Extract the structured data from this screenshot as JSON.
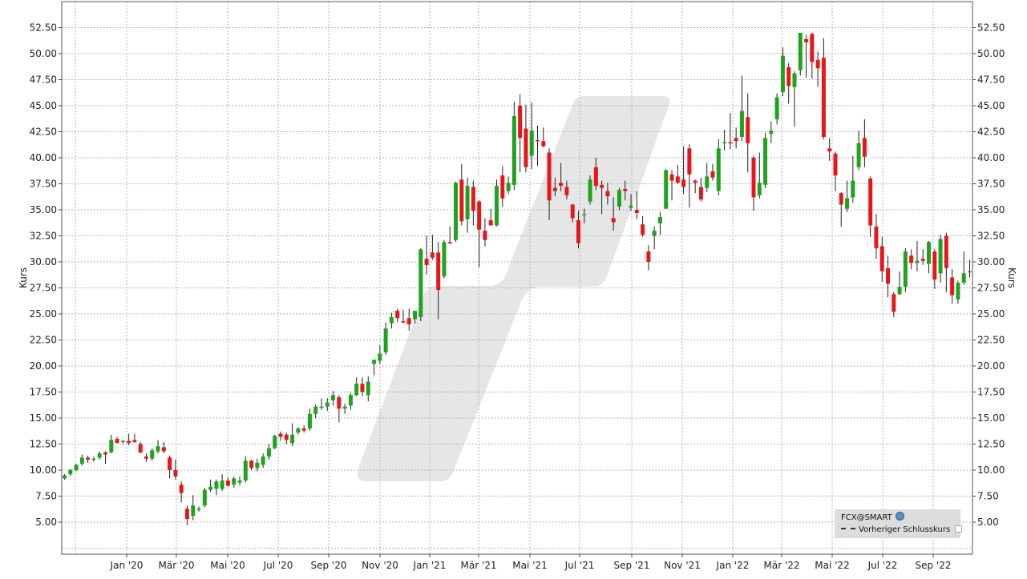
{
  "chart_data": {
    "type": "candlestick",
    "symbol": "FCX@SMART",
    "ylabel_left": "Kurs",
    "ylabel_right": "Kurs",
    "ylim": [
      2.5,
      55
    ],
    "yticks": [
      5.0,
      7.5,
      10.0,
      12.5,
      15.0,
      17.5,
      20.0,
      22.5,
      25.0,
      27.5,
      30.0,
      32.5,
      35.0,
      37.5,
      40.0,
      42.5,
      45.0,
      47.5,
      50.0,
      52.5
    ],
    "ytick_labels": [
      "5.00",
      "7.50",
      "10.00",
      "12.50",
      "15.00",
      "17.50",
      "20.00",
      "22.50",
      "25.00",
      "27.50",
      "30.00",
      "32.50",
      "35.00",
      "37.50",
      "40.00",
      "42.50",
      "45.00",
      "47.50",
      "50.00",
      "52.50"
    ],
    "xtick_labels": [
      "Jan '20",
      "Mär '20",
      "Mai '20",
      "Jul '20",
      "Sep '20",
      "Nov '20",
      "Jan '21",
      "Mär '21",
      "Mai '21",
      "Jul '21",
      "Sep '21",
      "Nov '21",
      "Jan '22",
      "Mär '22",
      "Mai '22",
      "Jul '22",
      "Sep '22"
    ],
    "grid": true,
    "legend_position": "bottom-right",
    "legend": {
      "symbol_label": "FCX@SMART",
      "prev_close_label": "Vorheriger Schlusskurs"
    },
    "colors": {
      "up": "#1fa31f",
      "down": "#e8161b",
      "grid": "#b4b4b4",
      "watermark": "#e6e6e6"
    },
    "candles": [
      [
        9.2,
        9.6,
        9.1,
        9.5
      ],
      [
        9.6,
        10.1,
        9.4,
        10.0
      ],
      [
        10.0,
        10.6,
        9.9,
        10.5
      ],
      [
        10.6,
        11.5,
        10.4,
        11.2
      ],
      [
        11.2,
        11.4,
        10.7,
        11.0
      ],
      [
        11.0,
        11.3,
        10.8,
        11.1
      ],
      [
        11.2,
        11.8,
        11.0,
        11.6
      ],
      [
        11.7,
        11.8,
        10.6,
        11.5
      ],
      [
        11.7,
        13.4,
        11.6,
        12.9
      ],
      [
        13.0,
        13.2,
        12.6,
        12.6
      ],
      [
        12.7,
        12.9,
        12.5,
        12.8
      ],
      [
        12.8,
        13.5,
        12.4,
        12.6
      ],
      [
        12.9,
        13.5,
        12.6,
        12.7
      ],
      [
        12.5,
        12.7,
        11.6,
        11.7
      ],
      [
        11.3,
        11.6,
        10.8,
        11.1
      ],
      [
        11.1,
        12.1,
        10.9,
        11.9
      ],
      [
        11.8,
        12.9,
        11.6,
        12.3
      ],
      [
        12.2,
        12.7,
        11.6,
        11.8
      ],
      [
        11.2,
        11.4,
        9.2,
        10.0
      ],
      [
        10.0,
        11.0,
        9.1,
        9.4
      ],
      [
        8.6,
        8.9,
        6.9,
        7.8
      ],
      [
        6.3,
        6.6,
        4.7,
        5.3
      ],
      [
        5.6,
        7.6,
        5.2,
        6.6
      ],
      [
        6.2,
        6.5,
        6.0,
        6.3
      ],
      [
        6.6,
        8.3,
        6.4,
        8.1
      ],
      [
        8.1,
        9.1,
        7.9,
        8.4
      ],
      [
        8.2,
        9.1,
        7.6,
        8.9
      ],
      [
        8.2,
        9.6,
        8.0,
        9.0
      ],
      [
        9.0,
        9.3,
        8.4,
        8.5
      ],
      [
        8.6,
        9.4,
        8.3,
        9.2
      ],
      [
        8.8,
        9.4,
        8.5,
        9.0
      ],
      [
        9.0,
        11.3,
        8.8,
        10.9
      ],
      [
        10.9,
        11.0,
        10.0,
        10.2
      ],
      [
        10.2,
        11.1,
        9.9,
        10.7
      ],
      [
        10.5,
        11.6,
        10.2,
        11.3
      ],
      [
        11.3,
        12.5,
        11.0,
        12.1
      ],
      [
        12.1,
        13.4,
        12.0,
        13.3
      ],
      [
        13.5,
        13.7,
        12.8,
        13.2
      ],
      [
        13.4,
        13.6,
        12.5,
        12.9
      ],
      [
        12.6,
        14.5,
        12.3,
        13.4
      ],
      [
        13.6,
        14.1,
        13.4,
        14.0
      ],
      [
        14.0,
        14.3,
        13.6,
        13.8
      ],
      [
        14.0,
        15.9,
        13.8,
        15.4
      ],
      [
        15.4,
        16.3,
        15.0,
        16.1
      ],
      [
        16.1,
        16.9,
        15.8,
        16.1
      ],
      [
        16.1,
        16.9,
        15.7,
        16.5
      ],
      [
        16.7,
        17.6,
        16.2,
        17.2
      ],
      [
        17.0,
        17.2,
        14.6,
        15.9
      ],
      [
        15.9,
        16.4,
        15.4,
        16.1
      ],
      [
        16.2,
        17.4,
        15.8,
        17.2
      ],
      [
        17.2,
        18.9,
        17.1,
        18.3
      ],
      [
        18.3,
        18.9,
        17.1,
        17.5
      ],
      [
        17.2,
        19.0,
        16.6,
        18.5
      ],
      [
        20.2,
        20.6,
        19.1,
        20.6
      ],
      [
        20.5,
        22.0,
        20.2,
        21.2
      ],
      [
        21.3,
        24.2,
        21.1,
        23.6
      ],
      [
        24.1,
        25.1,
        23.6,
        24.7
      ],
      [
        25.3,
        25.5,
        24.2,
        24.6
      ],
      [
        24.3,
        25.4,
        24.1,
        24.2
      ],
      [
        24.6,
        25.5,
        23.4,
        24.0
      ],
      [
        24.5,
        25.3,
        24.1,
        25.3
      ],
      [
        24.7,
        31.3,
        24.3,
        31.2
      ],
      [
        30.3,
        32.5,
        28.8,
        29.7
      ],
      [
        30.9,
        32.6,
        30.2,
        30.4
      ],
      [
        30.9,
        31.9,
        24.5,
        27.3
      ],
      [
        28.6,
        32.1,
        28.4,
        31.9
      ],
      [
        31.9,
        33.4,
        31.7,
        31.8
      ],
      [
        32.1,
        37.7,
        31.9,
        37.6
      ],
      [
        37.9,
        39.4,
        33.5,
        33.9
      ],
      [
        34.1,
        38.1,
        32.8,
        37.3
      ],
      [
        37.2,
        37.8,
        33.5,
        34.9
      ],
      [
        35.8,
        35.9,
        29.5,
        33.1
      ],
      [
        33.0,
        34.2,
        31.5,
        32.1
      ],
      [
        34.0,
        35.1,
        33.5,
        33.5
      ],
      [
        33.5,
        37.9,
        33.4,
        37.3
      ],
      [
        38.3,
        39.2,
        35.3,
        36.1
      ],
      [
        36.8,
        38.2,
        36.5,
        37.6
      ],
      [
        37.4,
        45.4,
        36.9,
        44.0
      ],
      [
        45.0,
        46.1,
        38.6,
        41.9
      ],
      [
        42.8,
        45.1,
        38.6,
        39.1
      ],
      [
        40.2,
        45.3,
        38.9,
        42.6
      ],
      [
        41.7,
        43.1,
        39.2,
        41.6
      ],
      [
        41.6,
        42.9,
        41.0,
        41.1
      ],
      [
        40.5,
        40.9,
        34.0,
        35.9
      ],
      [
        37.1,
        38.1,
        36.3,
        36.8
      ],
      [
        37.6,
        39.5,
        36.8,
        37.3
      ],
      [
        37.2,
        37.8,
        36.0,
        36.4
      ],
      [
        35.5,
        35.6,
        33.8,
        34.2
      ],
      [
        34.0,
        34.9,
        31.3,
        31.8
      ],
      [
        34.5,
        35.1,
        33.7,
        34.6
      ],
      [
        35.8,
        38.3,
        35.5,
        37.9
      ],
      [
        39.1,
        40.0,
        36.9,
        37.3
      ],
      [
        37.4,
        37.8,
        34.6,
        37.1
      ],
      [
        36.8,
        37.6,
        35.5,
        36.3
      ],
      [
        34.2,
        36.2,
        33.0,
        33.8
      ],
      [
        35.3,
        37.1,
        35.0,
        36.9
      ],
      [
        37.0,
        37.8,
        35.9,
        36.8
      ],
      [
        35.2,
        36.5,
        34.9,
        35.4
      ],
      [
        35.0,
        36.8,
        34.1,
        34.7
      ],
      [
        33.6,
        34.4,
        32.4,
        32.6
      ],
      [
        31.0,
        31.6,
        29.2,
        30.0
      ],
      [
        32.5,
        33.4,
        31.2,
        33.0
      ],
      [
        33.7,
        34.8,
        32.6,
        34.3
      ],
      [
        35.1,
        38.9,
        35.1,
        38.8
      ],
      [
        38.4,
        38.8,
        35.9,
        37.8
      ],
      [
        38.2,
        39.3,
        37.5,
        37.6
      ],
      [
        37.9,
        41.1,
        36.5,
        37.2
      ],
      [
        40.9,
        41.3,
        35.2,
        38.4
      ],
      [
        37.8,
        37.9,
        36.6,
        37.6
      ],
      [
        37.2,
        38.1,
        35.8,
        36.0
      ],
      [
        37.1,
        39.5,
        36.7,
        38.2
      ],
      [
        38.7,
        39.4,
        37.8,
        38.1
      ],
      [
        36.8,
        41.8,
        36.4,
        40.9
      ],
      [
        41.4,
        42.7,
        40.7,
        41.5
      ],
      [
        41.5,
        44.3,
        40.8,
        41.4
      ],
      [
        41.9,
        42.9,
        40.9,
        41.6
      ],
      [
        42.0,
        47.9,
        41.6,
        44.5
      ],
      [
        43.9,
        46.2,
        38.6,
        41.4
      ],
      [
        40.0,
        40.2,
        34.9,
        36.2
      ],
      [
        36.4,
        40.5,
        36.1,
        37.6
      ],
      [
        37.4,
        42.4,
        37.1,
        41.9
      ],
      [
        42.3,
        43.5,
        41.4,
        42.6
      ],
      [
        43.7,
        46.2,
        43.2,
        45.8
      ],
      [
        46.3,
        50.6,
        45.9,
        49.8
      ],
      [
        48.7,
        49.1,
        45.2,
        46.9
      ],
      [
        46.8,
        48.3,
        43.0,
        48.1
      ],
      [
        48.4,
        52.0,
        47.9,
        52.0
      ],
      [
        51.4,
        51.8,
        47.7,
        51.1
      ],
      [
        51.9,
        52.0,
        47.6,
        49.2
      ],
      [
        49.4,
        50.2,
        46.8,
        48.6
      ],
      [
        49.6,
        51.5,
        41.8,
        42.0
      ],
      [
        40.9,
        41.9,
        39.7,
        40.6
      ],
      [
        40.4,
        40.6,
        36.8,
        38.3
      ],
      [
        36.6,
        36.7,
        33.4,
        35.5
      ],
      [
        35.1,
        37.8,
        34.8,
        36.1
      ],
      [
        36.2,
        40.2,
        35.7,
        37.8
      ],
      [
        39.1,
        42.6,
        38.8,
        41.4
      ],
      [
        41.9,
        43.7,
        39.1,
        40.1
      ],
      [
        38.0,
        38.2,
        32.4,
        33.5
      ],
      [
        33.4,
        34.6,
        30.3,
        31.3
      ],
      [
        31.5,
        32.4,
        28.1,
        29.1
      ],
      [
        29.4,
        30.6,
        26.6,
        27.9
      ],
      [
        26.9,
        27.1,
        24.7,
        25.2
      ],
      [
        26.9,
        29.1,
        26.8,
        27.6
      ],
      [
        27.6,
        31.3,
        27.1,
        31.0
      ],
      [
        30.6,
        31.2,
        29.3,
        29.9
      ],
      [
        29.9,
        32.0,
        29.1,
        30.1
      ],
      [
        30.3,
        31.2,
        29.7,
        30.1
      ],
      [
        29.8,
        32.0,
        28.9,
        31.9
      ],
      [
        31.0,
        31.2,
        27.4,
        28.3
      ],
      [
        28.9,
        32.6,
        28.0,
        32.2
      ],
      [
        32.5,
        32.8,
        27.1,
        29.4
      ],
      [
        28.5,
        29.3,
        26.0,
        26.8
      ],
      [
        26.4,
        28.2,
        26.0,
        28.0
      ],
      [
        28.0,
        31.0,
        27.8,
        28.9
      ],
      [
        29.1,
        30.2,
        28.5,
        29.1
      ]
    ]
  }
}
